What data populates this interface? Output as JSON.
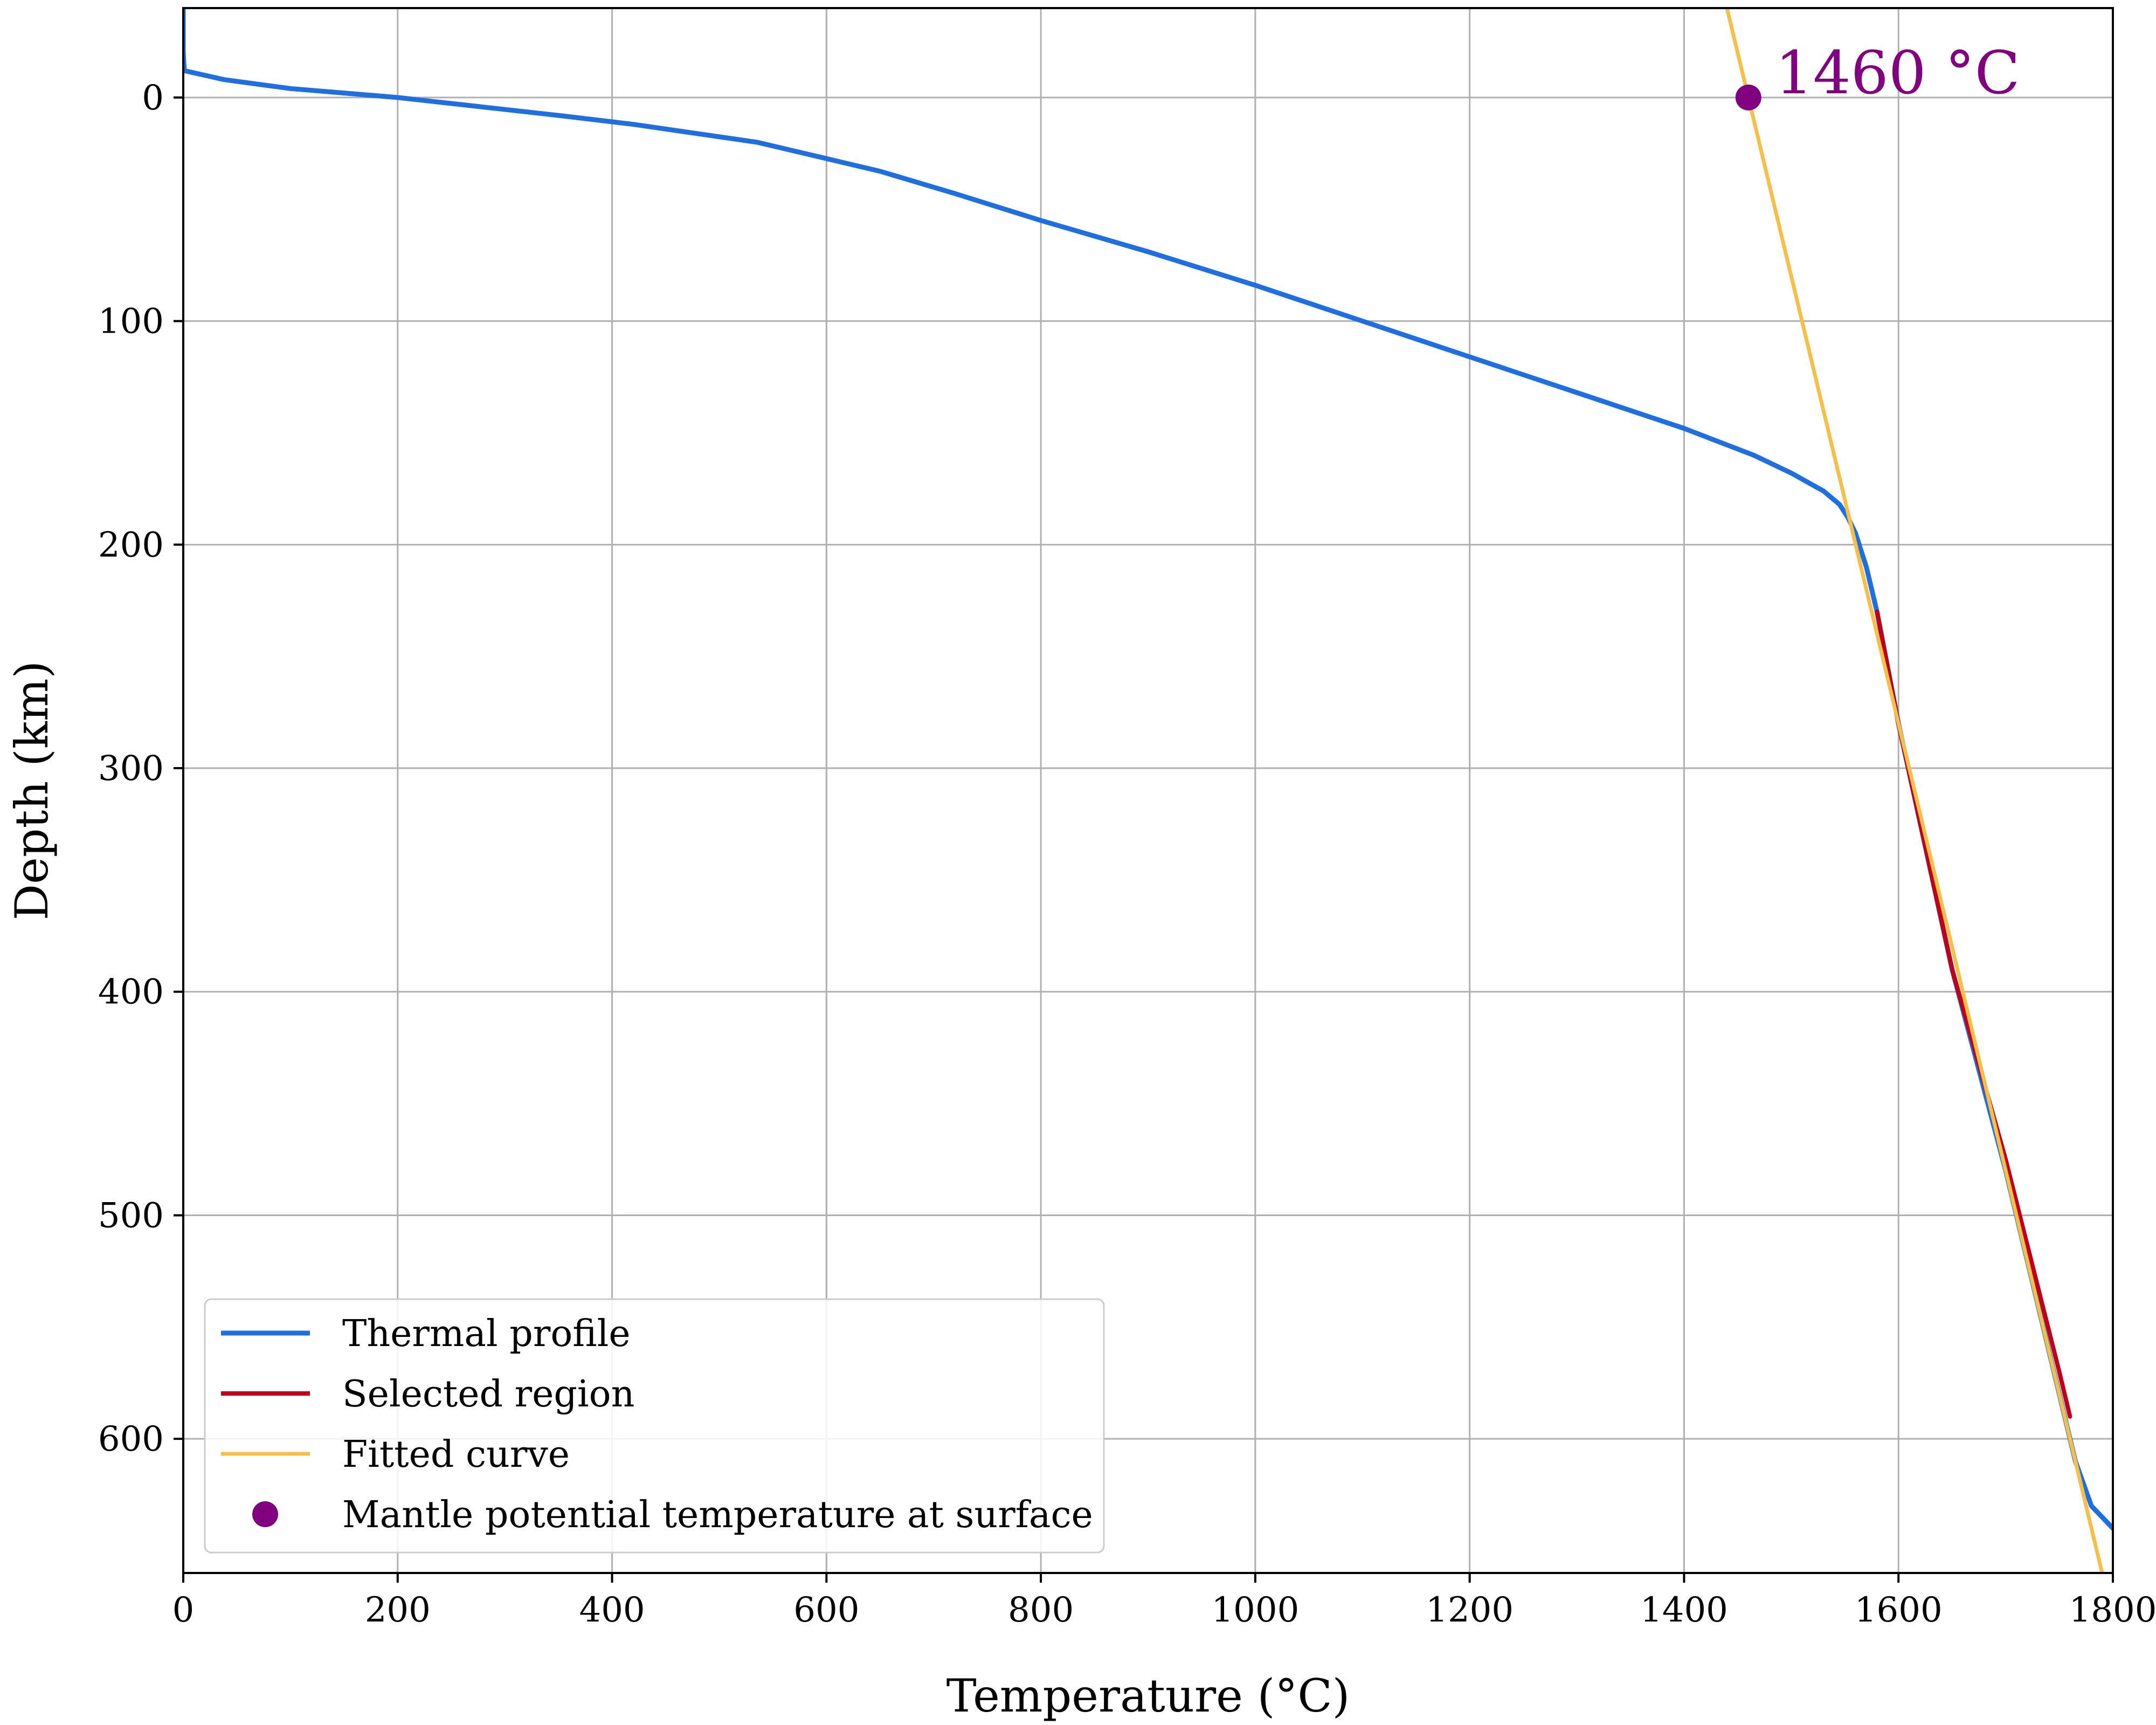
{
  "chart_data": {
    "type": "line",
    "title": "",
    "xlabel": "Temperature (°C)",
    "ylabel": "Depth (km)",
    "xlim": [
      0,
      1800
    ],
    "ylim": [
      660,
      -40
    ],
    "y_inverted": true,
    "xticks": [
      0,
      200,
      400,
      600,
      800,
      1000,
      1200,
      1400,
      1600,
      1800
    ],
    "yticks": [
      0,
      100,
      200,
      300,
      400,
      500,
      600
    ],
    "grid": true,
    "legend_position": "lower-left",
    "series": [
      {
        "name": "Thermal profile",
        "color": "#1f6fe0",
        "kind": "line",
        "x": [
          0,
          0,
          1,
          38,
          100,
          200,
          350,
          420,
          535,
          650,
          720,
          800,
          900,
          1000,
          1100,
          1200,
          1300,
          1400,
          1465,
          1500,
          1530,
          1545,
          1553,
          1560,
          1570,
          1580,
          1600,
          1650,
          1700,
          1750,
          1765,
          1780,
          1800
        ],
        "y": [
          -40,
          -20,
          -12,
          -8,
          -4,
          0,
          8,
          12,
          20,
          33,
          43,
          55,
          69,
          84,
          100,
          116,
          132,
          148,
          160,
          168,
          176,
          182,
          188,
          195,
          210,
          230,
          280,
          390,
          480,
          580,
          610,
          630,
          640
        ]
      },
      {
        "name": "Selected region",
        "color": "#c00018",
        "kind": "line",
        "x": [
          1580,
          1600,
          1650,
          1700,
          1750,
          1760
        ],
        "y": [
          230,
          280,
          390,
          475,
          570,
          590
        ]
      },
      {
        "name": "Fitted curve",
        "color": "#f5c04a",
        "kind": "line",
        "x": [
          1440,
          1460,
          1560,
          1660,
          1790
        ],
        "y": [
          -40,
          0,
          200,
          400,
          660
        ]
      },
      {
        "name": "Mantle potential temperature at surface",
        "color": "#800080",
        "kind": "point",
        "x": [
          1460
        ],
        "y": [
          0
        ]
      }
    ],
    "annotations": [
      {
        "text": "1460 °C",
        "x": 1460,
        "y": 0,
        "color": "#800080"
      }
    ]
  }
}
